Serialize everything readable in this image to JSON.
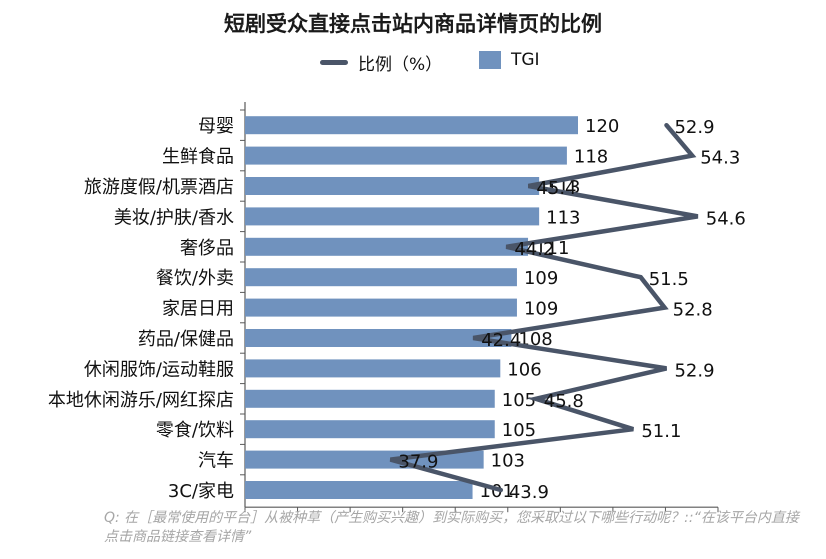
{
  "chart_data": {
    "type": "bar+line",
    "title": "短剧受众直接点击站内商品详情页的比例",
    "legend": [
      {
        "name": "比例（%）",
        "kind": "line",
        "color": "#4a5568"
      },
      {
        "name": "TGI",
        "kind": "bar",
        "color": "#7092be"
      }
    ],
    "categories": [
      "母婴",
      "生鲜食品",
      "旅游度假/机票酒店",
      "美妆/护肤/香水",
      "奢侈品",
      "餐饮/外卖",
      "家居日用",
      "药品/保健品",
      "休闲服饰/运动鞋服",
      "本地休闲游乐/网红探店",
      "零食/饮料",
      "汽车",
      "3C/家电"
    ],
    "series": [
      {
        "name": "TGI",
        "type": "bar",
        "values": [
          120,
          118,
          113,
          113,
          111,
          109,
          109,
          108,
          106,
          105,
          105,
          103,
          101
        ]
      },
      {
        "name": "比例（%）",
        "type": "line",
        "values": [
          52.9,
          54.3,
          45.4,
          54.6,
          44.2,
          51.5,
          52.8,
          42.4,
          52.9,
          45.8,
          51.1,
          37.9,
          43.9
        ]
      }
    ],
    "bar_axis_range": [
      60,
      120
    ],
    "line_axis_range": [
      30,
      55.7
    ],
    "grid": false
  },
  "footnote": "Q: 在［最常使用的平台］从被种草（产生购买兴趣）到实际购买，您采取过以下哪些行动呢？::“在该平台内直接点击商品链接查看详情”"
}
